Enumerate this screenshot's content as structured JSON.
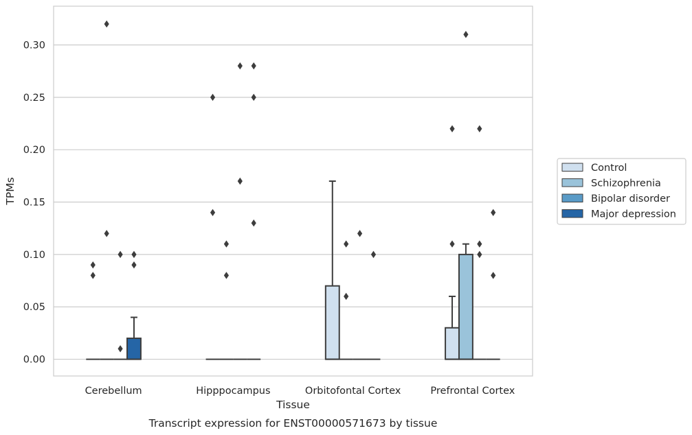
{
  "chart_data": {
    "type": "box",
    "title": "",
    "caption": "Transcript expression for ENST00000571673 by tissue",
    "xlabel": "Tissue",
    "ylabel": "TPMs",
    "ylim": [
      -0.016,
      0.337
    ],
    "yticks": [
      0.0,
      0.05,
      0.1,
      0.15,
      0.2,
      0.25,
      0.3
    ],
    "ytick_labels": [
      "0.00",
      "0.05",
      "0.10",
      "0.15",
      "0.20",
      "0.25",
      "0.30"
    ],
    "grid": "horizontal",
    "legend_position": "outside-right",
    "categories": [
      "Cerebellum",
      "Hipppocampus",
      "Orbitofontal Cortex",
      "Prefrontal Cortex"
    ],
    "series": [
      {
        "name": "Control",
        "color": "#d0e0ef",
        "boxes": [
          {
            "q1": 0,
            "median": 0,
            "q3": 0,
            "whisker_low": 0,
            "whisker_high": 0,
            "outliers": [
              0.08,
              0.09
            ]
          },
          {
            "q1": 0,
            "median": 0,
            "q3": 0,
            "whisker_low": 0,
            "whisker_high": 0,
            "outliers": [
              0.14,
              0.25
            ]
          },
          {
            "q1": 0,
            "median": 0,
            "q3": 0.07,
            "whisker_low": 0,
            "whisker_high": 0.17,
            "outliers": []
          },
          {
            "q1": 0,
            "median": 0,
            "q3": 0.03,
            "whisker_low": 0,
            "whisker_high": 0.06,
            "outliers": [
              0.11,
              0.22
            ]
          }
        ]
      },
      {
        "name": "Schizophrenia",
        "color": "#9ac3da",
        "boxes": [
          {
            "q1": 0,
            "median": 0,
            "q3": 0,
            "whisker_low": 0,
            "whisker_high": 0,
            "outliers": [
              0.12,
              0.32
            ]
          },
          {
            "q1": 0,
            "median": 0,
            "q3": 0,
            "whisker_low": 0,
            "whisker_high": 0,
            "outliers": [
              0.08,
              0.11
            ]
          },
          {
            "q1": 0,
            "median": 0,
            "q3": 0,
            "whisker_low": 0,
            "whisker_high": 0,
            "outliers": [
              0.06,
              0.11
            ]
          },
          {
            "q1": 0,
            "median": 0,
            "q3": 0.1,
            "whisker_low": 0,
            "whisker_high": 0.11,
            "outliers": [
              0.31
            ]
          }
        ]
      },
      {
        "name": "Bipolar disorder",
        "color": "#5a9bc7",
        "boxes": [
          {
            "q1": 0,
            "median": 0,
            "q3": 0,
            "whisker_low": 0,
            "whisker_high": 0,
            "outliers": [
              0.01,
              0.1
            ]
          },
          {
            "q1": 0,
            "median": 0,
            "q3": 0,
            "whisker_low": 0,
            "whisker_high": 0,
            "outliers": [
              0.17,
              0.28
            ]
          },
          {
            "q1": 0,
            "median": 0,
            "q3": 0,
            "whisker_low": 0,
            "whisker_high": 0,
            "outliers": [
              0.12
            ]
          },
          {
            "q1": 0,
            "median": 0,
            "q3": 0,
            "whisker_low": 0,
            "whisker_high": 0,
            "outliers": [
              0.1,
              0.11,
              0.22
            ]
          }
        ]
      },
      {
        "name": "Major depression",
        "color": "#2565a6",
        "boxes": [
          {
            "q1": 0,
            "median": 0,
            "q3": 0.02,
            "whisker_low": 0,
            "whisker_high": 0.04,
            "outliers": [
              0.09,
              0.1
            ]
          },
          {
            "q1": 0,
            "median": 0,
            "q3": 0,
            "whisker_low": 0,
            "whisker_high": 0,
            "outliers": [
              0.13,
              0.25,
              0.28
            ]
          },
          {
            "q1": 0,
            "median": 0,
            "q3": 0,
            "whisker_low": 0,
            "whisker_high": 0,
            "outliers": [
              0.1
            ]
          },
          {
            "q1": 0,
            "median": 0,
            "q3": 0,
            "whisker_low": 0,
            "whisker_high": 0,
            "outliers": [
              0.08,
              0.14
            ]
          }
        ]
      }
    ]
  }
}
